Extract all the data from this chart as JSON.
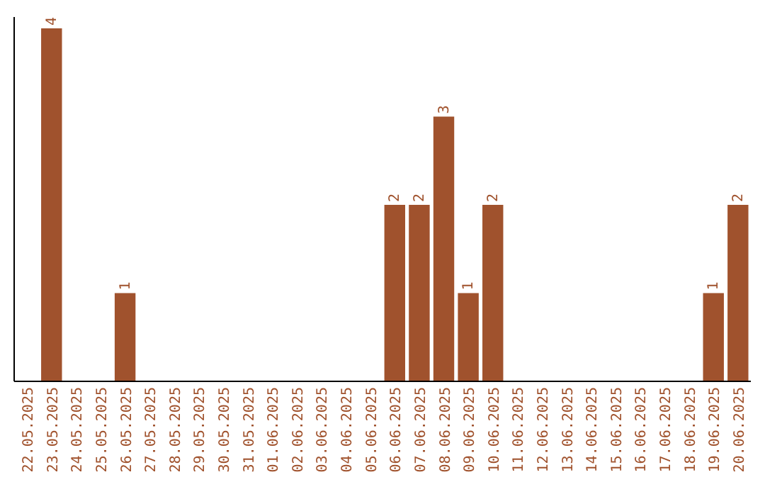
{
  "chart_data": {
    "type": "bar",
    "categories": [
      "22.05.2025",
      "23.05.2025",
      "24.05.2025",
      "25.05.2025",
      "26.05.2025",
      "27.05.2025",
      "28.05.2025",
      "29.05.2025",
      "30.05.2025",
      "31.05.2025",
      "01.06.2025",
      "02.06.2025",
      "03.06.2025",
      "04.06.2025",
      "05.06.2025",
      "06.06.2025",
      "07.06.2025",
      "08.06.2025",
      "09.06.2025",
      "10.06.2025",
      "11.06.2025",
      "12.06.2025",
      "13.06.2025",
      "14.06.2025",
      "15.06.2025",
      "16.06.2025",
      "17.06.2025",
      "18.06.2025",
      "19.06.2025",
      "20.06.2025"
    ],
    "values": [
      0,
      4,
      0,
      0,
      1,
      0,
      0,
      0,
      0,
      0,
      0,
      0,
      0,
      0,
      0,
      2,
      2,
      3,
      1,
      2,
      0,
      0,
      0,
      0,
      0,
      0,
      0,
      0,
      1,
      2
    ],
    "value_labels": [
      null,
      "4",
      null,
      null,
      "1",
      null,
      null,
      null,
      null,
      null,
      null,
      null,
      null,
      null,
      null,
      "2",
      "2",
      "3",
      "1",
      "2",
      null,
      null,
      null,
      null,
      null,
      null,
      null,
      null,
      "1",
      "2"
    ],
    "color": "#a0522d"
  }
}
